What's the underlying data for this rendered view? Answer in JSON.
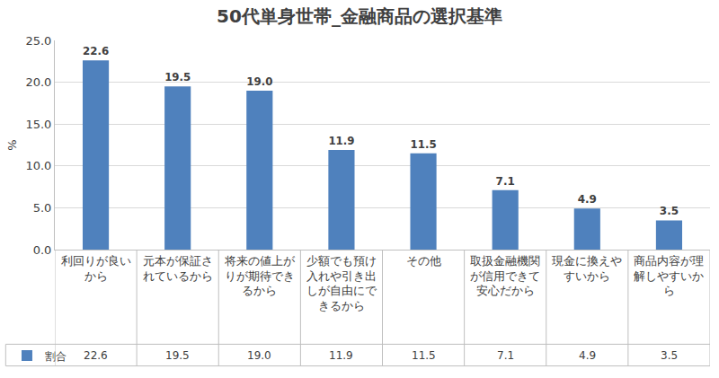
{
  "chart_data": {
    "type": "bar",
    "title": "50代単身世帯_金融商品の選択基準",
    "y_label": "%",
    "categories": [
      "利回りが良いから",
      "元本が保証されているから",
      "将来の値上がりが期待できるから",
      "少額でも預け入れや引き出しが自由にできるから",
      "その他",
      "取扱金融機関が信用できて安心だから",
      "現金に換えやすいから",
      "商品内容が理解しやすいから"
    ],
    "series": [
      {
        "name": "割合",
        "color": "#4f81bd",
        "values": [
          22.6,
          19.5,
          19.0,
          11.9,
          11.5,
          7.1,
          4.9,
          3.5
        ],
        "value_labels": [
          "22.6",
          "19.5",
          "19.0",
          "11.9",
          "11.5",
          "7.1",
          "4.9",
          "3.5"
        ]
      }
    ],
    "ylim": [
      0,
      25
    ],
    "yticks": [
      {
        "value": 0,
        "label": "0.0"
      },
      {
        "value": 5,
        "label": "5.0"
      },
      {
        "value": 10,
        "label": "10.0"
      },
      {
        "value": 15,
        "label": "15.0"
      },
      {
        "value": 20,
        "label": "20.0"
      },
      {
        "value": 25,
        "label": "25.0"
      }
    ],
    "grid": true,
    "data_labels": true,
    "legend": "bottom left"
  }
}
